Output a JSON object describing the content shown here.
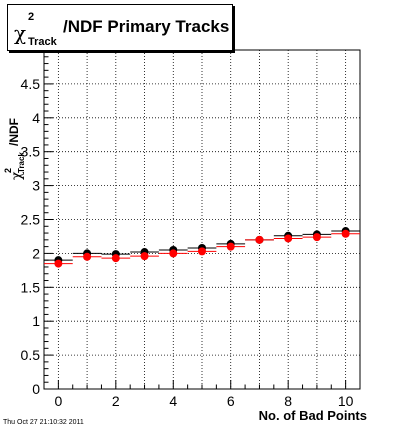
{
  "title": {
    "symbol": "χ",
    "sup": "2",
    "sub": "Track",
    "text": "/NDF Primary Tracks"
  },
  "ylabel": {
    "symbol": "χ",
    "sup": "2",
    "sub": "Track",
    "text": "/NDF"
  },
  "xlabel": "No. of Bad Points",
  "footer": "Thu Oct 27 21:10:32 2011",
  "colors": {
    "black_series": "#000000",
    "red_series": "#ff0000",
    "grid": "#000000"
  },
  "chart_data": {
    "type": "scatter",
    "title": "χ²Track/NDF Primary Tracks",
    "xlabel": "No. of Bad Points",
    "ylabel": "χ²Track/NDF",
    "xlim": [
      -0.5,
      10.5
    ],
    "ylim": [
      0,
      5
    ],
    "grid": true,
    "x_ticks": [
      0,
      2,
      4,
      6,
      8,
      10
    ],
    "y_ticks": [
      0,
      0.5,
      1,
      1.5,
      2,
      2.5,
      3,
      3.5,
      4,
      4.5
    ],
    "series": [
      {
        "color": "#000000",
        "x": [
          0,
          1,
          2,
          3,
          4,
          5,
          6,
          7,
          8,
          9,
          10
        ],
        "y": [
          1.9,
          2.0,
          1.99,
          2.02,
          2.05,
          2.08,
          2.14,
          2.2,
          2.26,
          2.28,
          2.33
        ]
      },
      {
        "color": "#ff0000",
        "x": [
          0,
          1,
          2,
          3,
          4,
          5,
          6,
          7,
          8,
          9,
          10
        ],
        "y": [
          1.85,
          1.95,
          1.93,
          1.96,
          2.0,
          2.03,
          2.1,
          2.2,
          2.22,
          2.24,
          2.29
        ]
      }
    ]
  }
}
